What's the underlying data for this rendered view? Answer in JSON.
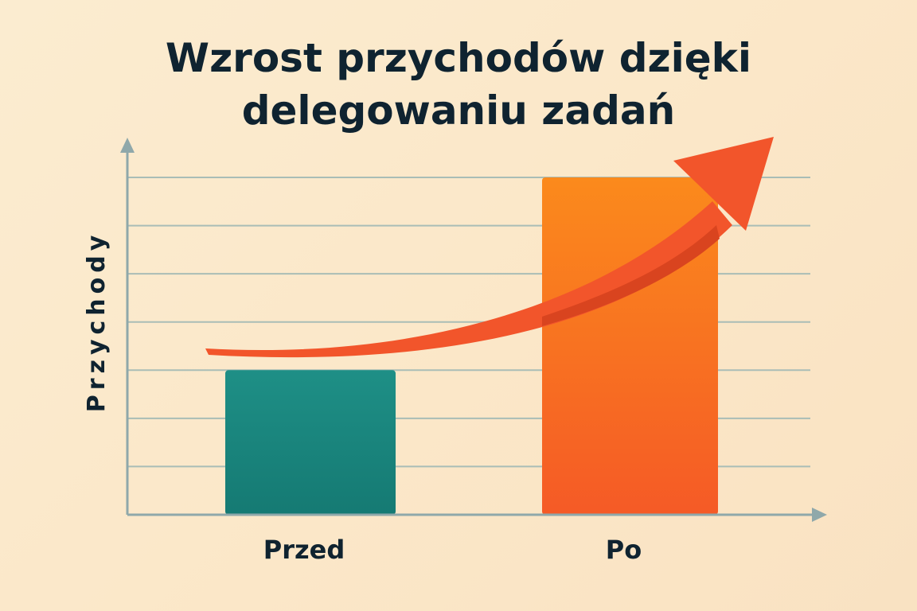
{
  "title_lines": [
    "Wzrost przychodów dzięki",
    "delegowaniu zadań"
  ],
  "chart_data": {
    "type": "bar",
    "title": "Wzrost przychodów dzięki delegowaniu zadań",
    "ylabel": "Przychody",
    "xlabel": "",
    "categories": [
      "Przed",
      "Po"
    ],
    "values": [
      3,
      7
    ],
    "ylim": [
      0,
      7
    ],
    "y_ticks_labeled": false,
    "grid": true,
    "legend": "none",
    "annotation": "upward-trend-arrow",
    "colors": {
      "bars": [
        "#1e8f86",
        "#fb7a22"
      ],
      "arrow": "#f2552b",
      "text": "#0f2330",
      "axis": "#8fa8aa",
      "grid": "#a9bdb6"
    }
  }
}
